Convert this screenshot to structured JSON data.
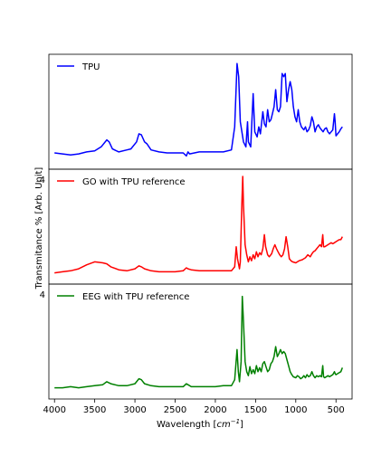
{
  "chart_data": {
    "type": "line",
    "layout": "three vertically stacked panels sharing the x-axis",
    "x_axis": {
      "label": "Wavelength [cm⁻¹]",
      "label_base": "Wavelength [",
      "label_unit": "cm",
      "label_exp": "−1",
      "label_tail": "]",
      "range": [
        4070,
        300
      ],
      "reversed": true,
      "ticks": [
        "4000",
        "3500",
        "3000",
        "2500",
        "2000",
        "1500",
        "1000",
        "500"
      ],
      "tick_values": [
        4000,
        3500,
        3000,
        2500,
        2000,
        1500,
        1000,
        500
      ]
    },
    "y_axis": {
      "label": "Transmitance % [Arb. Unit]",
      "ticks_visible": false,
      "clipped_tick_text": "4"
    },
    "grid": false,
    "panels": [
      {
        "name": "TPU",
        "color": "#0000ff",
        "legend_position": "upper-left",
        "points": [
          [
            4000,
            0.09
          ],
          [
            3900,
            0.08
          ],
          [
            3800,
            0.07
          ],
          [
            3700,
            0.08
          ],
          [
            3600,
            0.1
          ],
          [
            3500,
            0.11
          ],
          [
            3420,
            0.15
          ],
          [
            3350,
            0.22
          ],
          [
            3320,
            0.2
          ],
          [
            3280,
            0.13
          ],
          [
            3200,
            0.1
          ],
          [
            3100,
            0.12
          ],
          [
            3050,
            0.13
          ],
          [
            2980,
            0.2
          ],
          [
            2950,
            0.28
          ],
          [
            2920,
            0.27
          ],
          [
            2880,
            0.2
          ],
          [
            2850,
            0.18
          ],
          [
            2800,
            0.12
          ],
          [
            2700,
            0.1
          ],
          [
            2600,
            0.09
          ],
          [
            2500,
            0.09
          ],
          [
            2400,
            0.09
          ],
          [
            2360,
            0.06
          ],
          [
            2340,
            0.1
          ],
          [
            2320,
            0.08
          ],
          [
            2200,
            0.1
          ],
          [
            2100,
            0.1
          ],
          [
            2000,
            0.1
          ],
          [
            1900,
            0.1
          ],
          [
            1800,
            0.12
          ],
          [
            1760,
            0.35
          ],
          [
            1730,
            0.98
          ],
          [
            1710,
            0.85
          ],
          [
            1690,
            0.4
          ],
          [
            1650,
            0.2
          ],
          [
            1620,
            0.15
          ],
          [
            1600,
            0.4
          ],
          [
            1590,
            0.2
          ],
          [
            1560,
            0.15
          ],
          [
            1530,
            0.68
          ],
          [
            1510,
            0.3
          ],
          [
            1480,
            0.25
          ],
          [
            1460,
            0.35
          ],
          [
            1440,
            0.28
          ],
          [
            1410,
            0.5
          ],
          [
            1390,
            0.38
          ],
          [
            1370,
            0.35
          ],
          [
            1350,
            0.52
          ],
          [
            1330,
            0.4
          ],
          [
            1310,
            0.42
          ],
          [
            1290,
            0.48
          ],
          [
            1270,
            0.55
          ],
          [
            1250,
            0.72
          ],
          [
            1230,
            0.52
          ],
          [
            1210,
            0.5
          ],
          [
            1190,
            0.55
          ],
          [
            1170,
            0.88
          ],
          [
            1150,
            0.85
          ],
          [
            1130,
            0.88
          ],
          [
            1110,
            0.6
          ],
          [
            1090,
            0.72
          ],
          [
            1070,
            0.8
          ],
          [
            1050,
            0.72
          ],
          [
            1030,
            0.55
          ],
          [
            1010,
            0.45
          ],
          [
            990,
            0.4
          ],
          [
            970,
            0.52
          ],
          [
            950,
            0.4
          ],
          [
            930,
            0.35
          ],
          [
            900,
            0.32
          ],
          [
            880,
            0.35
          ],
          [
            860,
            0.3
          ],
          [
            840,
            0.32
          ],
          [
            820,
            0.36
          ],
          [
            800,
            0.45
          ],
          [
            780,
            0.4
          ],
          [
            760,
            0.3
          ],
          [
            740,
            0.35
          ],
          [
            720,
            0.37
          ],
          [
            700,
            0.34
          ],
          [
            680,
            0.32
          ],
          [
            660,
            0.3
          ],
          [
            640,
            0.33
          ],
          [
            620,
            0.34
          ],
          [
            600,
            0.3
          ],
          [
            580,
            0.28
          ],
          [
            560,
            0.3
          ],
          [
            540,
            0.32
          ],
          [
            520,
            0.48
          ],
          [
            510,
            0.4
          ],
          [
            500,
            0.26
          ],
          [
            480,
            0.28
          ],
          [
            460,
            0.3
          ],
          [
            440,
            0.33
          ],
          [
            420,
            0.35
          ]
        ]
      },
      {
        "name": "GO with TPU reference",
        "color": "#ff0000",
        "legend_position": "upper-left",
        "points": [
          [
            4000,
            0.04
          ],
          [
            3900,
            0.05
          ],
          [
            3800,
            0.06
          ],
          [
            3700,
            0.08
          ],
          [
            3600,
            0.12
          ],
          [
            3500,
            0.15
          ],
          [
            3400,
            0.14
          ],
          [
            3350,
            0.13
          ],
          [
            3300,
            0.1
          ],
          [
            3200,
            0.07
          ],
          [
            3100,
            0.06
          ],
          [
            3000,
            0.08
          ],
          [
            2950,
            0.11
          ],
          [
            2920,
            0.1
          ],
          [
            2880,
            0.08
          ],
          [
            2800,
            0.06
          ],
          [
            2700,
            0.05
          ],
          [
            2600,
            0.05
          ],
          [
            2500,
            0.05
          ],
          [
            2400,
            0.06
          ],
          [
            2360,
            0.09
          ],
          [
            2340,
            0.08
          ],
          [
            2300,
            0.07
          ],
          [
            2200,
            0.06
          ],
          [
            2100,
            0.06
          ],
          [
            2000,
            0.06
          ],
          [
            1900,
            0.06
          ],
          [
            1800,
            0.06
          ],
          [
            1760,
            0.1
          ],
          [
            1740,
            0.3
          ],
          [
            1725,
            0.18
          ],
          [
            1700,
            0.08
          ],
          [
            1690,
            0.15
          ],
          [
            1670,
            0.75
          ],
          [
            1660,
            1.0
          ],
          [
            1650,
            0.72
          ],
          [
            1630,
            0.32
          ],
          [
            1610,
            0.22
          ],
          [
            1590,
            0.15
          ],
          [
            1570,
            0.2
          ],
          [
            1550,
            0.16
          ],
          [
            1530,
            0.22
          ],
          [
            1510,
            0.18
          ],
          [
            1490,
            0.25
          ],
          [
            1470,
            0.2
          ],
          [
            1450,
            0.24
          ],
          [
            1430,
            0.22
          ],
          [
            1410,
            0.28
          ],
          [
            1390,
            0.42
          ],
          [
            1375,
            0.3
          ],
          [
            1350,
            0.22
          ],
          [
            1330,
            0.2
          ],
          [
            1300,
            0.23
          ],
          [
            1280,
            0.28
          ],
          [
            1260,
            0.32
          ],
          [
            1240,
            0.28
          ],
          [
            1220,
            0.25
          ],
          [
            1200,
            0.22
          ],
          [
            1180,
            0.2
          ],
          [
            1160,
            0.22
          ],
          [
            1140,
            0.28
          ],
          [
            1120,
            0.4
          ],
          [
            1100,
            0.3
          ],
          [
            1080,
            0.18
          ],
          [
            1060,
            0.16
          ],
          [
            1040,
            0.15
          ],
          [
            1000,
            0.14
          ],
          [
            960,
            0.16
          ],
          [
            920,
            0.17
          ],
          [
            880,
            0.19
          ],
          [
            850,
            0.22
          ],
          [
            820,
            0.2
          ],
          [
            800,
            0.23
          ],
          [
            780,
            0.25
          ],
          [
            760,
            0.26
          ],
          [
            740,
            0.28
          ],
          [
            720,
            0.3
          ],
          [
            700,
            0.32
          ],
          [
            680,
            0.3
          ],
          [
            665,
            0.42
          ],
          [
            655,
            0.3
          ],
          [
            640,
            0.3
          ],
          [
            620,
            0.31
          ],
          [
            600,
            0.32
          ],
          [
            580,
            0.33
          ],
          [
            560,
            0.34
          ],
          [
            540,
            0.33
          ],
          [
            520,
            0.34
          ],
          [
            500,
            0.35
          ],
          [
            480,
            0.36
          ],
          [
            460,
            0.37
          ],
          [
            440,
            0.37
          ],
          [
            420,
            0.4
          ]
        ]
      },
      {
        "name": "EEG with TPU reference",
        "color": "#008000",
        "legend_position": "upper-left",
        "points": [
          [
            4000,
            0.04
          ],
          [
            3900,
            0.04
          ],
          [
            3800,
            0.05
          ],
          [
            3700,
            0.04
          ],
          [
            3600,
            0.05
          ],
          [
            3500,
            0.06
          ],
          [
            3400,
            0.07
          ],
          [
            3350,
            0.1
          ],
          [
            3300,
            0.08
          ],
          [
            3200,
            0.06
          ],
          [
            3100,
            0.06
          ],
          [
            3000,
            0.08
          ],
          [
            2950,
            0.13
          ],
          [
            2920,
            0.12
          ],
          [
            2880,
            0.08
          ],
          [
            2800,
            0.06
          ],
          [
            2700,
            0.05
          ],
          [
            2600,
            0.05
          ],
          [
            2500,
            0.05
          ],
          [
            2400,
            0.05
          ],
          [
            2360,
            0.08
          ],
          [
            2340,
            0.07
          ],
          [
            2300,
            0.05
          ],
          [
            2200,
            0.05
          ],
          [
            2100,
            0.05
          ],
          [
            2000,
            0.05
          ],
          [
            1900,
            0.06
          ],
          [
            1800,
            0.06
          ],
          [
            1760,
            0.12
          ],
          [
            1730,
            0.42
          ],
          [
            1715,
            0.2
          ],
          [
            1700,
            0.1
          ],
          [
            1680,
            0.3
          ],
          [
            1665,
            0.95
          ],
          [
            1650,
            0.7
          ],
          [
            1630,
            0.3
          ],
          [
            1610,
            0.2
          ],
          [
            1590,
            0.16
          ],
          [
            1570,
            0.25
          ],
          [
            1550,
            0.18
          ],
          [
            1530,
            0.22
          ],
          [
            1510,
            0.18
          ],
          [
            1490,
            0.26
          ],
          [
            1470,
            0.2
          ],
          [
            1450,
            0.24
          ],
          [
            1430,
            0.2
          ],
          [
            1410,
            0.28
          ],
          [
            1390,
            0.3
          ],
          [
            1370,
            0.25
          ],
          [
            1350,
            0.2
          ],
          [
            1330,
            0.22
          ],
          [
            1310,
            0.28
          ],
          [
            1290,
            0.3
          ],
          [
            1270,
            0.35
          ],
          [
            1250,
            0.45
          ],
          [
            1230,
            0.35
          ],
          [
            1210,
            0.38
          ],
          [
            1190,
            0.42
          ],
          [
            1170,
            0.38
          ],
          [
            1150,
            0.4
          ],
          [
            1130,
            0.38
          ],
          [
            1110,
            0.32
          ],
          [
            1090,
            0.26
          ],
          [
            1070,
            0.2
          ],
          [
            1050,
            0.17
          ],
          [
            1030,
            0.15
          ],
          [
            1000,
            0.14
          ],
          [
            980,
            0.16
          ],
          [
            960,
            0.15
          ],
          [
            940,
            0.13
          ],
          [
            920,
            0.14
          ],
          [
            900,
            0.16
          ],
          [
            880,
            0.14
          ],
          [
            860,
            0.17
          ],
          [
            840,
            0.15
          ],
          [
            820,
            0.16
          ],
          [
            800,
            0.2
          ],
          [
            780,
            0.16
          ],
          [
            760,
            0.14
          ],
          [
            740,
            0.16
          ],
          [
            720,
            0.15
          ],
          [
            700,
            0.16
          ],
          [
            680,
            0.15
          ],
          [
            665,
            0.26
          ],
          [
            655,
            0.15
          ],
          [
            640,
            0.14
          ],
          [
            620,
            0.15
          ],
          [
            600,
            0.16
          ],
          [
            580,
            0.15
          ],
          [
            560,
            0.16
          ],
          [
            540,
            0.17
          ],
          [
            520,
            0.2
          ],
          [
            510,
            0.18
          ],
          [
            500,
            0.17
          ],
          [
            480,
            0.18
          ],
          [
            460,
            0.19
          ],
          [
            440,
            0.2
          ],
          [
            420,
            0.24
          ]
        ]
      }
    ]
  }
}
